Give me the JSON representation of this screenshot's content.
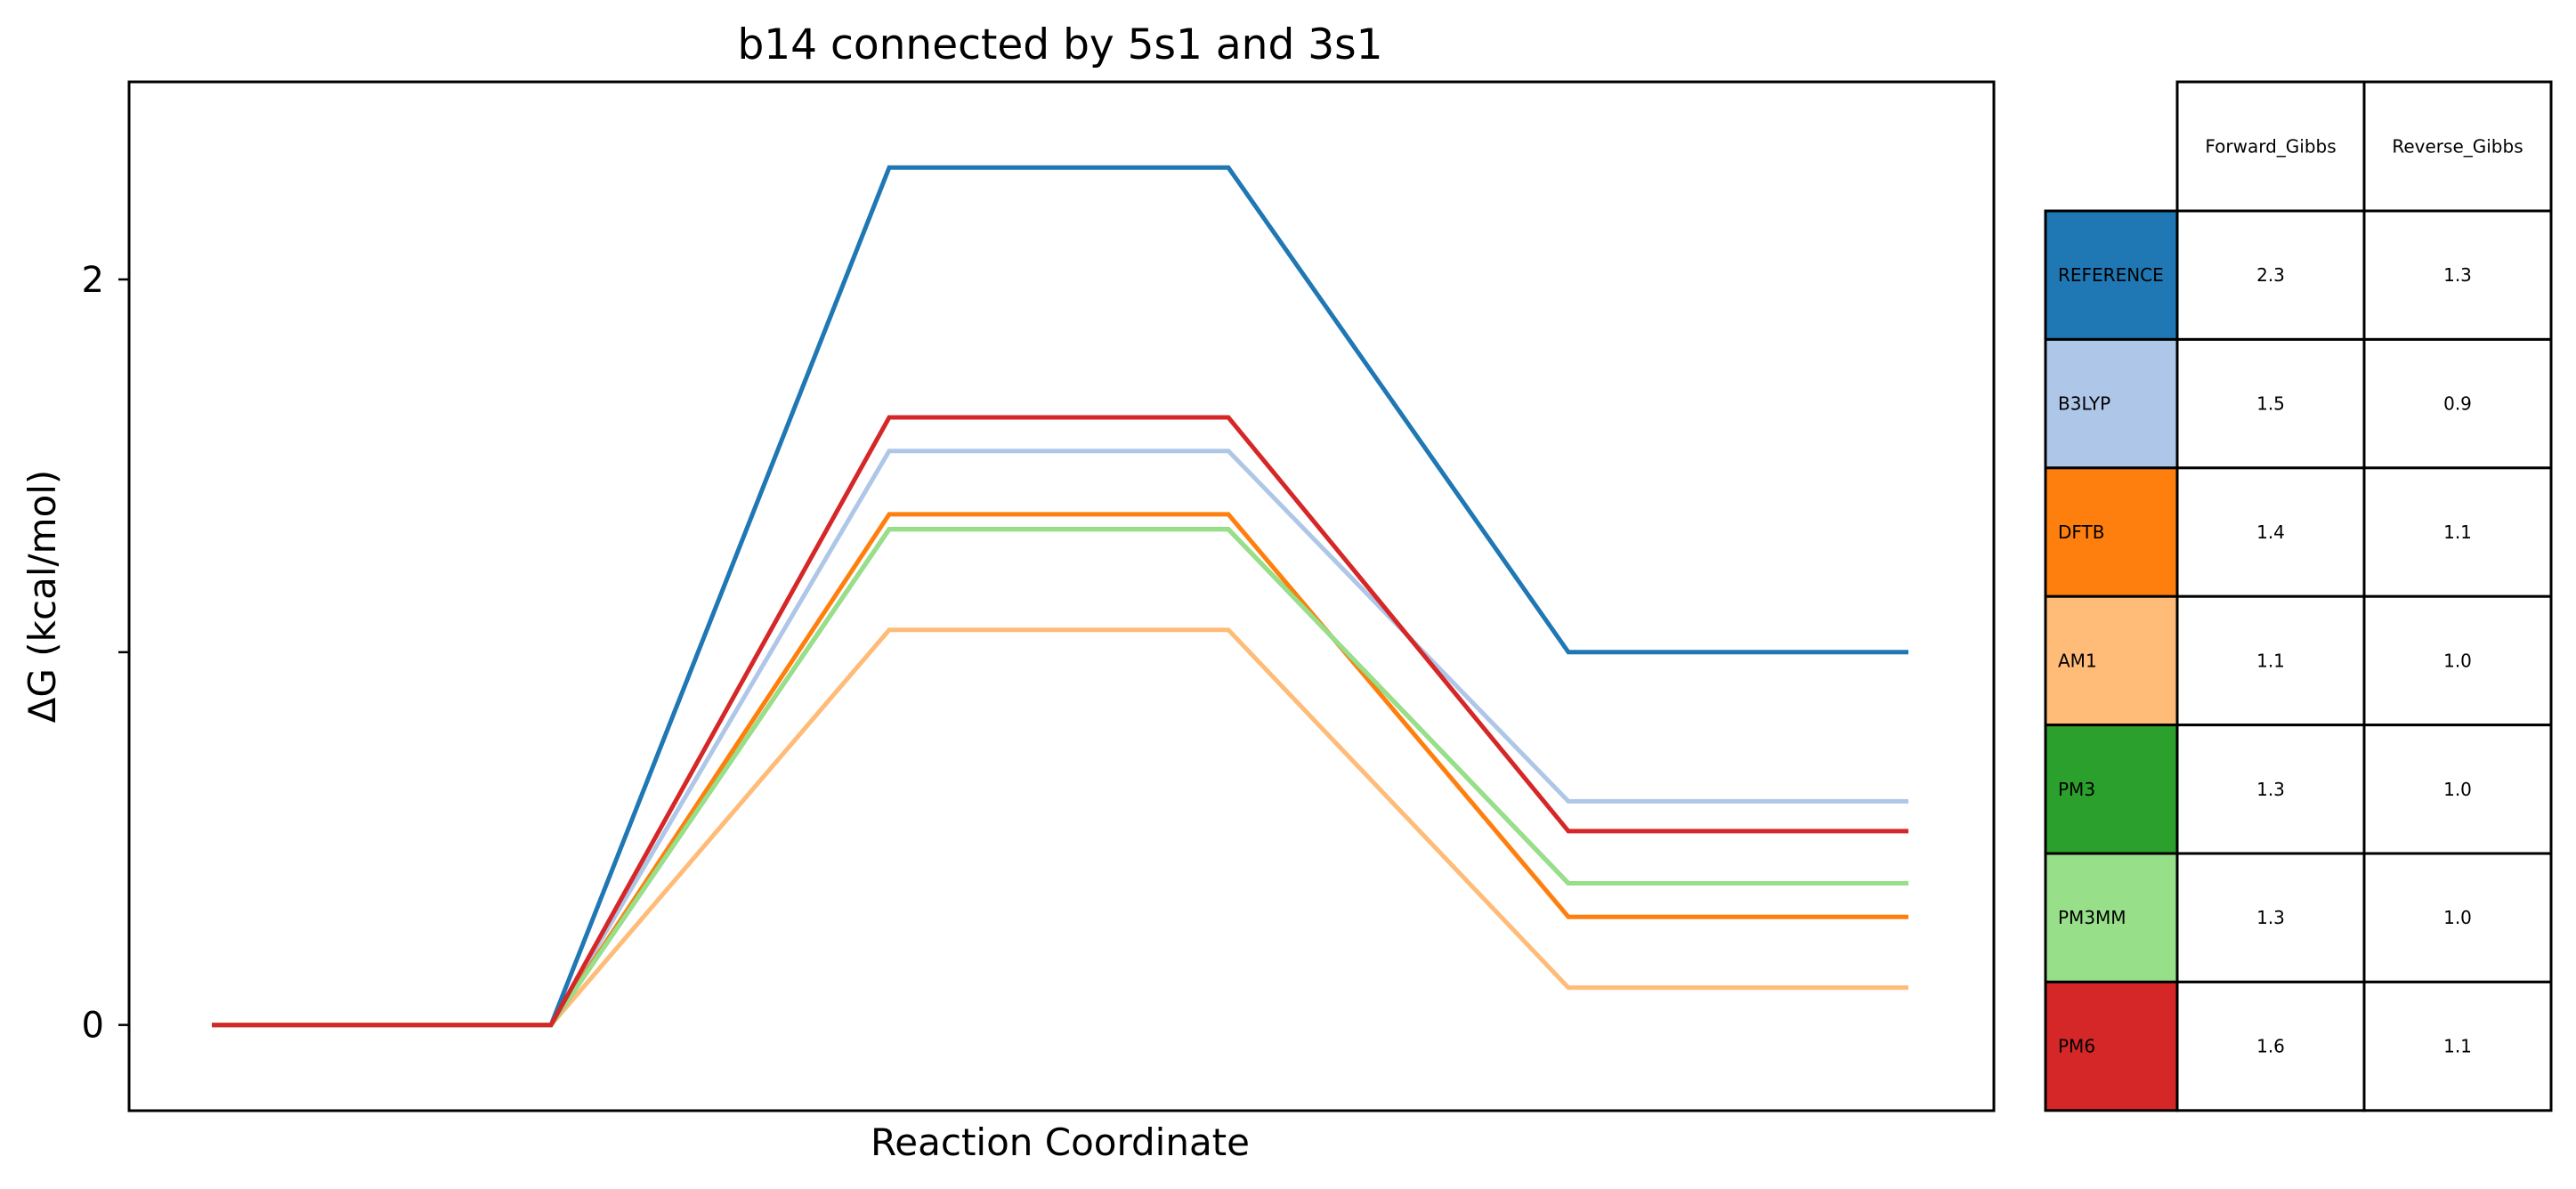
{
  "chart_data": {
    "type": "line",
    "title": "b14 connected by 5s1 and 3s1",
    "xlabel": "Reaction Coordinate",
    "ylabel": "ΔG (kcal/mol)",
    "ylim": [
      -0.23,
      2.53
    ],
    "y_ticks": [
      {
        "value": 0,
        "label": "0"
      },
      {
        "value": 1,
        "label": ""
      },
      {
        "value": 2,
        "label": "2"
      }
    ],
    "x_ticks": [],
    "grid": false,
    "x": [
      0,
      1,
      2,
      3,
      4,
      5
    ],
    "series": [
      {
        "name": "REFERENCE",
        "color": "#1f77b4",
        "values": [
          0,
          0,
          2.3,
          2.3,
          1.0,
          1.0
        ]
      },
      {
        "name": "B3LYP",
        "color": "#aec7e8",
        "values": [
          0,
          0,
          1.54,
          1.54,
          0.6,
          0.6
        ]
      },
      {
        "name": "DFTB",
        "color": "#ff7f0e",
        "values": [
          0,
          0,
          1.37,
          1.37,
          0.29,
          0.29
        ]
      },
      {
        "name": "AM1",
        "color": "#ffbb78",
        "values": [
          0,
          0,
          1.06,
          1.06,
          0.1,
          0.1
        ]
      },
      {
        "name": "PM3",
        "color": "#2ca02c",
        "values": [
          0,
          0,
          1.33,
          1.33,
          0.38,
          0.38
        ]
      },
      {
        "name": "PM3MM",
        "color": "#98df8a",
        "values": [
          0,
          0,
          1.33,
          1.33,
          0.38,
          0.38
        ]
      },
      {
        "name": "PM6",
        "color": "#d62728",
        "values": [
          0,
          0,
          1.63,
          1.63,
          0.52,
          0.52
        ]
      }
    ],
    "table": {
      "columns": [
        "Forward_Gibbs",
        "Reverse_Gibbs"
      ],
      "rows": [
        {
          "label": "REFERENCE",
          "color": "#1f77b4",
          "values": [
            "2.3",
            "1.3"
          ]
        },
        {
          "label": "B3LYP",
          "color": "#aec7e8",
          "values": [
            "1.5",
            "0.9"
          ]
        },
        {
          "label": "DFTB",
          "color": "#ff7f0e",
          "values": [
            "1.4",
            "1.1"
          ]
        },
        {
          "label": "AM1",
          "color": "#ffbb78",
          "values": [
            "1.1",
            "1.0"
          ]
        },
        {
          "label": "PM3",
          "color": "#2ca02c",
          "values": [
            "1.3",
            "1.0"
          ]
        },
        {
          "label": "PM3MM",
          "color": "#98df8a",
          "values": [
            "1.3",
            "1.0"
          ]
        },
        {
          "label": "PM6",
          "color": "#d62728",
          "values": [
            "1.6",
            "1.1"
          ]
        }
      ]
    }
  }
}
